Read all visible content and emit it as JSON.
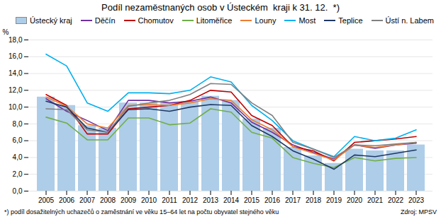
{
  "chart_data": {
    "type": "bar",
    "title": "Podíl nezaměstnaných osob v Ústeckém  kraji k 31. 12.  *)",
    "ylabel": "%",
    "footnote": "*) podíl dosažitelných uchazečů o zaměstnání ve věku 15–64 let na počtu obyvatel stejného věku",
    "source": "Zdroj: MPSV",
    "categories": [
      "2005",
      "2006",
      "2007",
      "2008",
      "2009",
      "2010",
      "2011",
      "2012",
      "2013",
      "2014",
      "2015",
      "2016",
      "2017",
      "2018",
      "2019",
      "2020",
      "2021",
      "2022",
      "2023"
    ],
    "series": [
      {
        "name": "Ústecký kraj",
        "type": "bar",
        "color": "#aecde8",
        "values": [
          11.2,
          10.2,
          7.8,
          7.5,
          10.5,
          10.5,
          10.5,
          10.7,
          11.3,
          10.8,
          8.6,
          7.5,
          5.2,
          4.2,
          3.3,
          5.0,
          4.8,
          4.8,
          5.5
        ]
      },
      {
        "name": "Děčín",
        "type": "line",
        "color": "#7030a0",
        "values": [
          11.0,
          9.5,
          8.4,
          7.2,
          10.8,
          10.8,
          10.5,
          10.7,
          11.2,
          10.5,
          8.2,
          7.0,
          5.5,
          4.6,
          3.8,
          5.5,
          5.1,
          5.5,
          5.7
        ]
      },
      {
        "name": "Chomutov",
        "type": "line",
        "color": "#c00000",
        "values": [
          11.5,
          10.2,
          6.8,
          6.8,
          9.8,
          10.0,
          10.2,
          10.8,
          12.0,
          11.8,
          9.0,
          7.8,
          5.3,
          4.8,
          3.6,
          5.8,
          6.0,
          6.2,
          6.5
        ]
      },
      {
        "name": "Litoměřice",
        "type": "line",
        "color": "#70ad47",
        "values": [
          8.8,
          8.1,
          6.1,
          6.1,
          8.7,
          8.7,
          7.9,
          8.1,
          9.8,
          9.4,
          7.0,
          6.3,
          4.0,
          3.3,
          2.8,
          4.0,
          3.6,
          3.9,
          4.0
        ]
      },
      {
        "name": "Louny",
        "type": "line",
        "color": "#ed7d31",
        "values": [
          11.2,
          10.1,
          8.0,
          7.5,
          10.2,
          10.3,
          10.2,
          10.5,
          11.0,
          10.8,
          8.5,
          7.3,
          5.3,
          4.5,
          3.7,
          5.5,
          5.2,
          5.5,
          5.8
        ]
      },
      {
        "name": "Most",
        "type": "line",
        "color": "#00b0f0",
        "values": [
          16.3,
          14.9,
          10.5,
          9.5,
          11.7,
          11.7,
          11.6,
          12.0,
          13.6,
          13.0,
          10.2,
          8.4,
          6.0,
          5.0,
          4.1,
          6.5,
          6.0,
          6.3,
          7.3
        ]
      },
      {
        "name": "Teplice",
        "type": "line",
        "color": "#1f3864",
        "values": [
          10.7,
          10.0,
          7.5,
          7.0,
          9.7,
          9.8,
          9.5,
          10.0,
          10.3,
          10.2,
          7.8,
          6.5,
          4.8,
          3.8,
          2.6,
          4.3,
          4.1,
          4.5,
          4.9
        ]
      },
      {
        "name": "Ústí n. Labem",
        "type": "line",
        "color": "#808080",
        "values": [
          9.8,
          9.7,
          7.3,
          7.0,
          10.1,
          10.5,
          10.8,
          11.5,
          12.8,
          12.7,
          10.5,
          9.0,
          5.8,
          5.0,
          4.0,
          5.5,
          5.4,
          5.6,
          5.8
        ]
      }
    ],
    "ylim": [
      0,
      18
    ],
    "yticks": [
      {
        "value": 0,
        "label": "0,0"
      },
      {
        "value": 2,
        "label": "2,0"
      },
      {
        "value": 4,
        "label": "4,0"
      },
      {
        "value": 6,
        "label": "6,0"
      },
      {
        "value": 8,
        "label": "8,0"
      },
      {
        "value": 10,
        "label": "10,0"
      },
      {
        "value": 12,
        "label": "12,0"
      },
      {
        "value": 14,
        "label": "14,0"
      },
      {
        "value": 16,
        "label": "16,0"
      },
      {
        "value": 18,
        "label": "18,0"
      }
    ],
    "grid": true,
    "legend": "upper right"
  }
}
